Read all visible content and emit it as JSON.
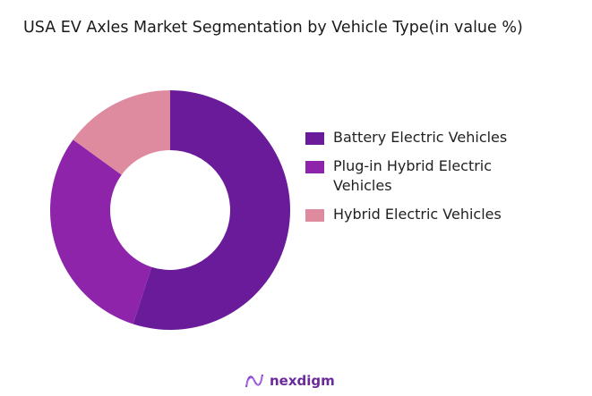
{
  "title": "USA EV Axles Market Segmentation by Vehicle Type(in value %)",
  "chart_data": {
    "type": "pie",
    "subtype": "donut",
    "title": "USA EV Axles Market Segmentation by Vehicle Type(in value %)",
    "categories": [
      "Battery Electric Vehicles",
      "Plug-in Hybrid Electric Vehicles",
      "Hybrid Electric Vehicles"
    ],
    "values": [
      55,
      30,
      15
    ],
    "colors": [
      "#6a1b9a",
      "#8e24aa",
      "#de8ba0"
    ],
    "legend_position": "right"
  },
  "legend": {
    "items": [
      {
        "label": "Battery Electric Vehicles",
        "color": "#6a1b9a"
      },
      {
        "label": "Plug-in Hybrid Electric Vehicles",
        "color": "#8e24aa"
      },
      {
        "label": "Hybrid Electric Vehicles",
        "color": "#de8ba0"
      }
    ]
  },
  "brand": {
    "name": "nexdigm"
  }
}
